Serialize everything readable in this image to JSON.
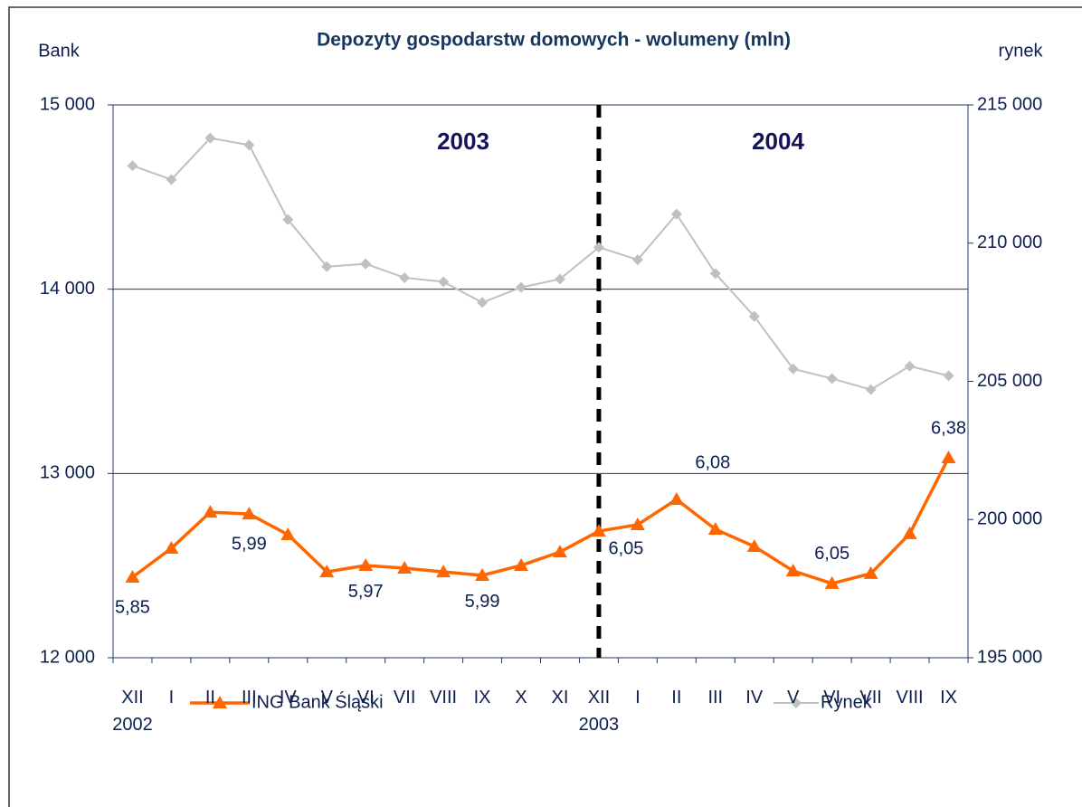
{
  "chart_data": {
    "type": "line",
    "title": "Depozyty gospodarstw domowych - wolumeny (mln)",
    "y_label": "Bank",
    "y2_label": "rynek",
    "categories": [
      "XII\n2002",
      "I",
      "II",
      "III",
      "IV",
      "V",
      "VI",
      "VII",
      "VIII",
      "IX",
      "X",
      "XI",
      "XII\n2003",
      "I",
      "II",
      "III",
      "IV",
      "V",
      "VI",
      "VII",
      "VIII",
      "IX"
    ],
    "period_labels": [
      "2003",
      "2004"
    ],
    "ylim": [
      12000,
      15000
    ],
    "yticks": [
      {
        "value": 12000,
        "label": "12 000"
      },
      {
        "value": 13000,
        "label": "13 000"
      },
      {
        "value": 14000,
        "label": "14 000"
      },
      {
        "value": 15000,
        "label": "15 000"
      }
    ],
    "y2lim": [
      195000,
      215000
    ],
    "y2ticks": [
      {
        "value": 195000,
        "label": "195 000"
      },
      {
        "value": 200000,
        "label": "200 000"
      },
      {
        "value": 205000,
        "label": "205 000"
      },
      {
        "value": 210000,
        "label": "210 000"
      },
      {
        "value": 215000,
        "label": "215 000"
      }
    ],
    "grid": true,
    "series": [
      {
        "name": "ING Bank Śląski",
        "color": "#ff6600",
        "marker": "triangle",
        "values": [
          12437,
          12594,
          12790,
          12780,
          12668,
          12466,
          12501,
          12486,
          12466,
          12447,
          12501,
          12574,
          12687,
          12722,
          12859,
          12697,
          12604,
          12471,
          12403,
          12457,
          12673,
          13085
        ],
        "point_labels": [
          "5,85",
          null,
          null,
          "5,99",
          null,
          null,
          "5,97",
          null,
          null,
          "5,99",
          null,
          null,
          "6,05",
          null,
          "6,08",
          null,
          null,
          null,
          "6,05",
          null,
          null,
          "6,38"
        ]
      },
      {
        "name": "Rynek",
        "color": "#c0c0c0",
        "marker": "diamond",
        "axis": "y2",
        "values": [
          212800,
          212300,
          213800,
          213550,
          210850,
          209150,
          209250,
          208750,
          208600,
          207850,
          208400,
          208700,
          209850,
          209400,
          211050,
          208900,
          207350,
          205450,
          205100,
          204700,
          205550,
          205200
        ]
      }
    ]
  }
}
